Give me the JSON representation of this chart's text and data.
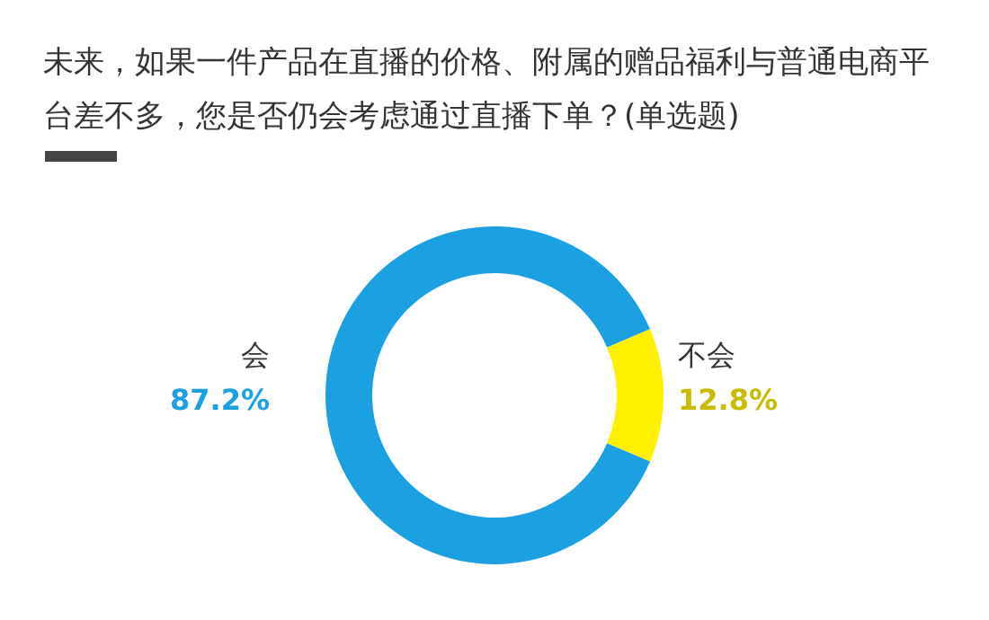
{
  "chart_data": {
    "type": "donut",
    "title": "未来，如果一件产品在直播的价格、附属的赠品福利与普通电商平台差不多，您是否仍会考虑通过直播下单？(单选题)",
    "categories": [
      "会",
      "不会"
    ],
    "values": [
      87.2,
      12.8
    ],
    "colors": [
      "#1ba1e2",
      "#fff000"
    ],
    "value_labels": [
      "87.2%",
      "12.8%"
    ]
  }
}
